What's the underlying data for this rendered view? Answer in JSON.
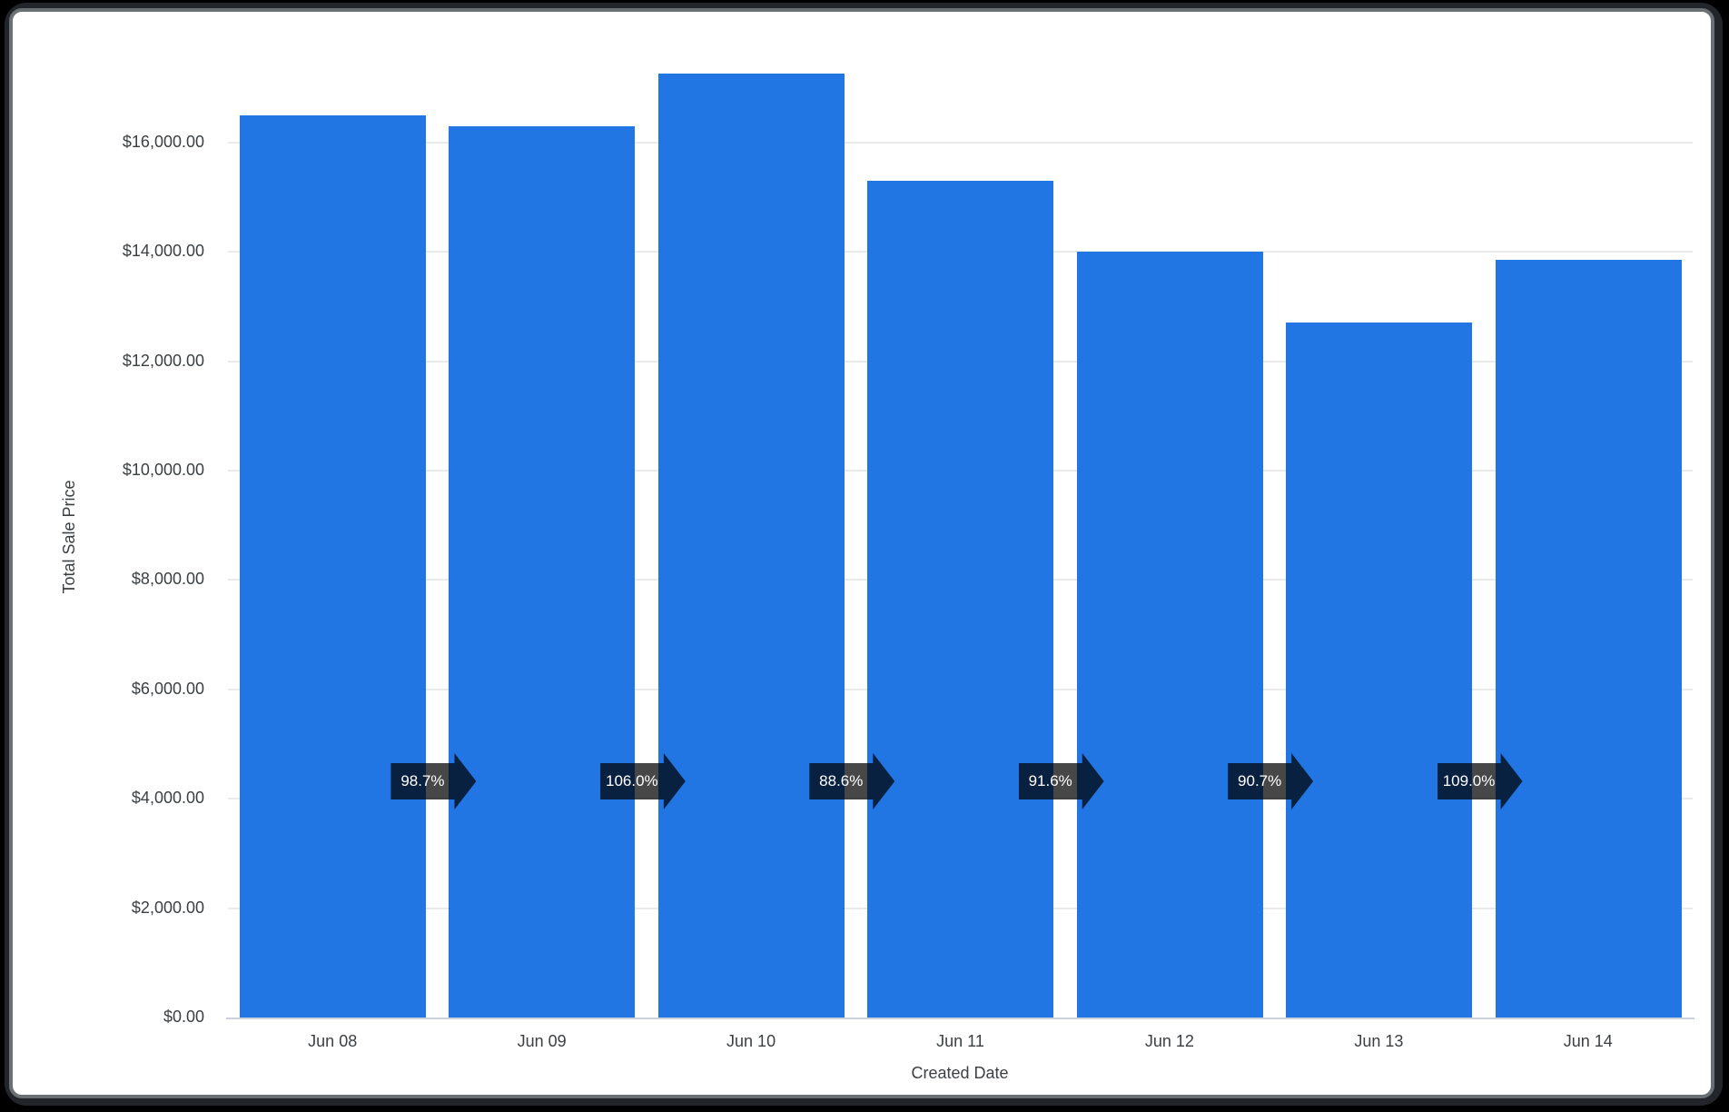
{
  "window": {
    "frame_outer_color": "#000000",
    "frame_ring_color": "#22262a",
    "frame_border_color": "#6b7075",
    "card_bg": "#ffffff"
  },
  "chart_data": {
    "type": "bar",
    "title": "",
    "xlabel": "Created Date",
    "ylabel": "Total Sale Price",
    "categories": [
      "Jun 08",
      "Jun 09",
      "Jun 10",
      "Jun 11",
      "Jun 12",
      "Jun 13",
      "Jun 14"
    ],
    "values": [
      16500,
      16290,
      17260,
      15295,
      14010,
      12707,
      13850
    ],
    "series_name": "Total Sale Price",
    "bar_color": "#2176e4",
    "grid": true,
    "legend_position": "none",
    "ylim": [
      0,
      17390
    ],
    "y_ticks": [
      {
        "value": 0,
        "label": "$0.00"
      },
      {
        "value": 2000,
        "label": "$2,000.00"
      },
      {
        "value": 4000,
        "label": "$4,000.00"
      },
      {
        "value": 6000,
        "label": "$6,000.00"
      },
      {
        "value": 8000,
        "label": "$8,000.00"
      },
      {
        "value": 10000,
        "label": "$10,000.00"
      },
      {
        "value": 12000,
        "label": "$12,000.00"
      },
      {
        "value": 14000,
        "label": "$14,000.00"
      },
      {
        "value": 16000,
        "label": "$16,000.00"
      }
    ],
    "annotations": {
      "style": "right-arrow-percent",
      "arrow_fill": "rgba(0,0,0,0.72)",
      "text_color": "#ffffff",
      "labels": [
        "98.7%",
        "106.0%",
        "88.6%",
        "91.6%",
        "90.7%",
        "109.0%"
      ]
    }
  }
}
